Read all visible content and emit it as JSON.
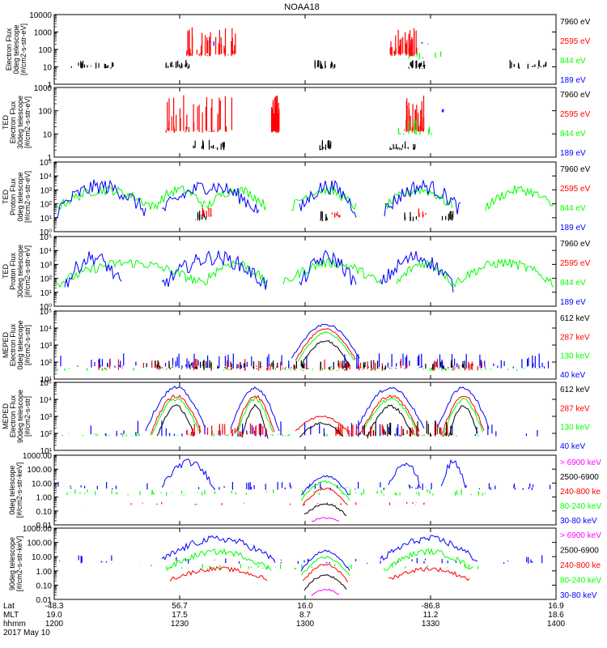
{
  "title": "NOAA18",
  "colors": {
    "black": "#000000",
    "red": "#ff0000",
    "green": "#00ff00",
    "blue": "#0000ff",
    "magenta": "#ff00ff",
    "grey": "#000000"
  },
  "footer": {
    "x_ticks": {
      "lat": [
        "-48.3",
        "56.7",
        "16.0",
        "-86.8",
        "16.9"
      ],
      "mlt": [
        "19.0",
        "17.5",
        "8.7",
        "11.2",
        "18.6"
      ],
      "hhmm": [
        "1200",
        "1230",
        "1300",
        "1330",
        "1400"
      ]
    },
    "row_labels": [
      "Lat",
      "MLT",
      "hhmm"
    ],
    "date": "2017 May 10"
  },
  "chart_data": [
    {
      "type": "line",
      "panel": "TED 0deg electron",
      "ylabel": [
        "Electron Flux",
        "0deg telescope",
        "[#/cm2-s-str-eV]"
      ],
      "y_ticks": [
        "1",
        "10",
        "100",
        "1000",
        "10000"
      ],
      "yscale": "log",
      "ylim": [
        1,
        10000
      ],
      "series": [
        {
          "name": "7960 eV",
          "color": "black"
        },
        {
          "name": "2595 eV",
          "color": "red"
        },
        {
          "name": "844 eV",
          "color": "green"
        },
        {
          "name": "189 eV",
          "color": "blue"
        }
      ]
    },
    {
      "type": "line",
      "panel": "TED 30deg electron",
      "ylabel": [
        "TED",
        "Electron Flux",
        "30deg telescope",
        "[#/cm2-s-str-eV]"
      ],
      "y_ticks": [
        "1",
        "10",
        "100",
        "1000"
      ],
      "yscale": "log",
      "ylim": [
        1,
        1000
      ],
      "series": [
        {
          "name": "7960 eV",
          "color": "black"
        },
        {
          "name": "2595 eV",
          "color": "red"
        },
        {
          "name": "844 eV",
          "color": "green"
        },
        {
          "name": "189 eV",
          "color": "blue"
        }
      ]
    },
    {
      "type": "line",
      "panel": "TED 0deg proton",
      "ylabel": [
        "TED",
        "Proton Flux",
        "0deg telescope",
        "[#/cm2-s-str-eV]"
      ],
      "y_ticks": [
        "10⁰",
        "10¹",
        "10²",
        "10³",
        "10⁴",
        "10⁵"
      ],
      "yscale": "log",
      "ylim": [
        1,
        100000
      ],
      "series": [
        {
          "name": "7960 eV",
          "color": "black"
        },
        {
          "name": "2595 eV",
          "color": "red"
        },
        {
          "name": "844 eV",
          "color": "green"
        },
        {
          "name": "189 eV",
          "color": "blue"
        }
      ]
    },
    {
      "type": "line",
      "panel": "TED 30deg proton",
      "ylabel": [
        "TED",
        "Proton Flux",
        "30deg telescope",
        "[#/cm2-s-str-eV]"
      ],
      "y_ticks": [
        "10⁰",
        "10¹",
        "10²",
        "10³",
        "10⁴",
        "10⁵"
      ],
      "yscale": "log",
      "ylim": [
        1,
        100000
      ],
      "series": [
        {
          "name": "7960 eV",
          "color": "black"
        },
        {
          "name": "2595 eV",
          "color": "red"
        },
        {
          "name": "844 eV",
          "color": "green"
        },
        {
          "name": "189 eV",
          "color": "blue"
        }
      ]
    },
    {
      "type": "line",
      "panel": "MEPED 0deg electron",
      "ylabel": [
        "MEPED",
        "Electron Flux",
        "0deg telescope",
        "[#/cm2-s-str]"
      ],
      "y_ticks": [
        "10¹",
        "10²",
        "10³",
        "10⁴",
        "10⁵"
      ],
      "yscale": "log",
      "ylim": [
        10,
        100000
      ],
      "series": [
        {
          "name": "612 keV",
          "color": "black"
        },
        {
          "name": "287 keV",
          "color": "red"
        },
        {
          "name": "130 keV",
          "color": "green"
        },
        {
          "name": "40 keV",
          "color": "blue"
        }
      ]
    },
    {
      "type": "line",
      "panel": "MEPED 90deg electron",
      "ylabel": [
        "MEPED",
        "Electron Flux",
        "90deg telescope",
        "[#/cm2-s-str]"
      ],
      "y_ticks": [
        "10¹",
        "10²",
        "10³",
        "10⁴",
        "10⁵"
      ],
      "yscale": "log",
      "ylim": [
        10,
        100000
      ],
      "series": [
        {
          "name": "612 keV",
          "color": "black"
        },
        {
          "name": "287 keV",
          "color": "red"
        },
        {
          "name": "130 keV",
          "color": "green"
        },
        {
          "name": "40 keV",
          "color": "blue"
        }
      ]
    },
    {
      "type": "line",
      "panel": "MEPED 0deg proton",
      "ylabel": [
        "0deg telescope",
        "[#/cm2-s-str-keV]"
      ],
      "y_ticks": [
        "0.01",
        "0.10",
        "1.00",
        "10.00",
        "100.00",
        "1000.00"
      ],
      "yscale": "log",
      "ylim": [
        0.01,
        1000
      ],
      "series": [
        {
          "name": "> 6900 keV",
          "color": "magenta"
        },
        {
          "name": "2500-6900",
          "color": "black"
        },
        {
          "name": "240-800 ke",
          "color": "red"
        },
        {
          "name": "80-240 keV",
          "color": "green"
        },
        {
          "name": "30-80 keV",
          "color": "blue"
        }
      ]
    },
    {
      "type": "line",
      "panel": "MEPED 90deg proton",
      "ylabel": [
        "90deg telescope",
        "[#/cm2-s-str-keV]"
      ],
      "y_ticks": [
        "0.01",
        "0.10",
        "1.00",
        "10.00",
        "100.00",
        "1000.00"
      ],
      "yscale": "log",
      "ylim": [
        0.01,
        1000
      ],
      "series": [
        {
          "name": "> 6900 keV",
          "color": "magenta"
        },
        {
          "name": "2500-6900",
          "color": "black"
        },
        {
          "name": "240-800 ke",
          "color": "red"
        },
        {
          "name": "80-240 keV",
          "color": "green"
        },
        {
          "name": "30-80 keV",
          "color": "blue"
        }
      ]
    }
  ]
}
